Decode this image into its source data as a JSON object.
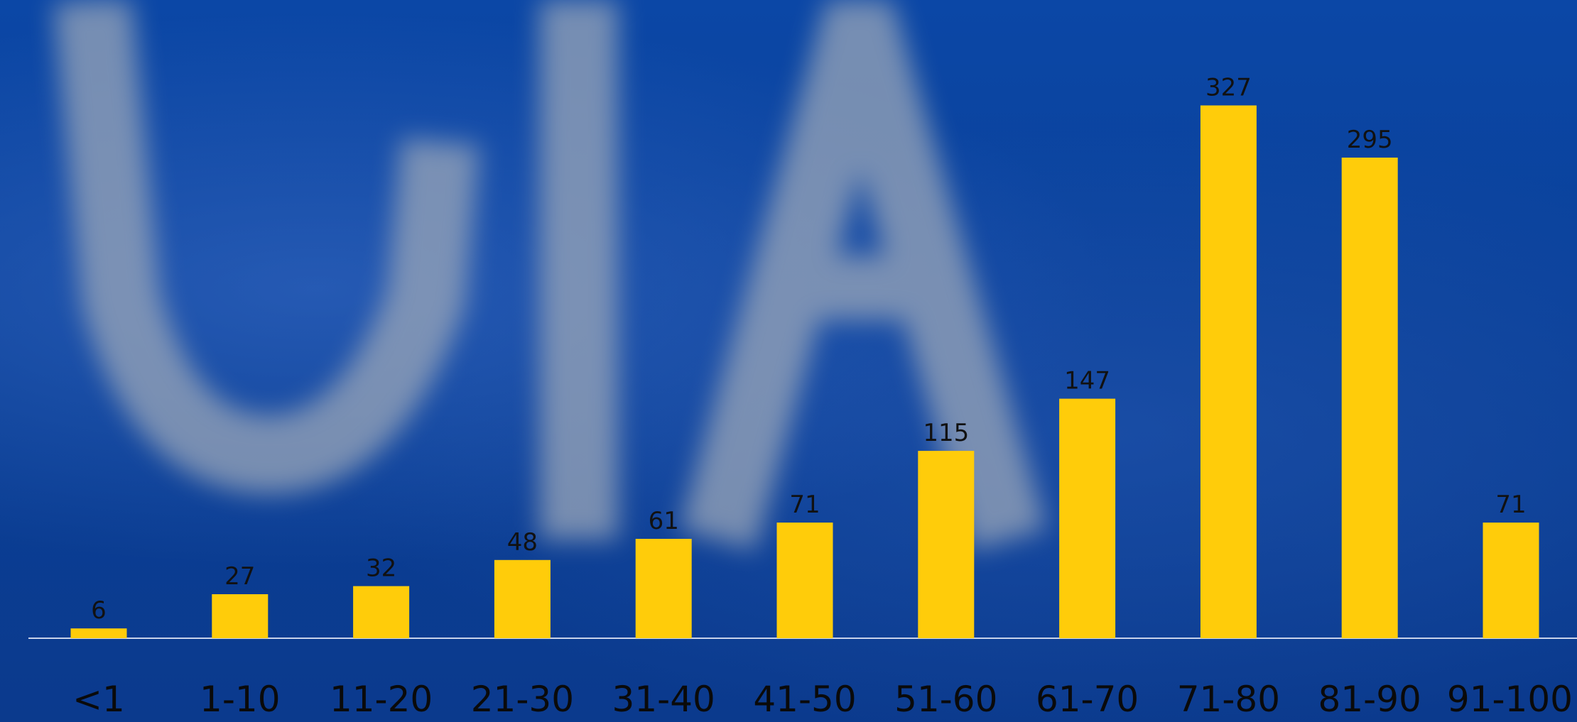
{
  "chart_data": {
    "type": "bar",
    "categories": [
      "<1",
      "1-10",
      "11-20",
      "21-30",
      "31-40",
      "41-50",
      "51-60",
      "61-70",
      "71-80",
      "81-90",
      "91-100"
    ],
    "values": [
      6,
      27,
      32,
      48,
      61,
      71,
      115,
      147,
      327,
      295,
      71
    ],
    "data_labels": [
      "6",
      "27",
      "32",
      "48",
      "61",
      "71",
      "115",
      "147",
      "327",
      "295",
      "71"
    ],
    "title": "",
    "xlabel": "",
    "ylabel": "",
    "ylim": [
      0,
      350
    ],
    "grid": false,
    "legend": "none",
    "bar_color": "#FFCC0A",
    "axis_color": "#C9D3EA",
    "label_color": "#111111",
    "background_color": "#0B3F97"
  }
}
